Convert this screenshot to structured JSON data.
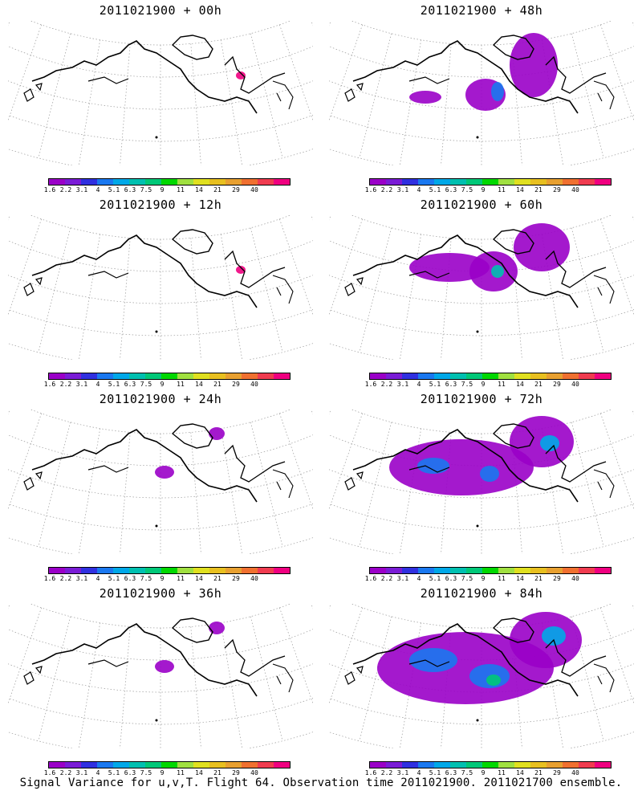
{
  "caption": "Signal Variance for u,v,T. Flight 64. Observation time 2011021900. 2011021700 ensemble.",
  "legend": {
    "labels": [
      "1.6",
      "2.2",
      "3.1",
      "4",
      "5.1",
      "6.3",
      "7.5",
      "9",
      "11",
      "14",
      "21",
      "29",
      "40"
    ],
    "colors": [
      "#9a00c8",
      "#7a1cd6",
      "#3030e0",
      "#1a78f0",
      "#00a8e8",
      "#00c0b0",
      "#00c878",
      "#00d800",
      "#a0e040",
      "#e0e020",
      "#e8c020",
      "#e8a030",
      "#f07030",
      "#f03c50",
      "#f00080"
    ]
  },
  "panels": [
    {
      "title": "2011021900 + 00h",
      "level": 0
    },
    {
      "title": "2011021900 + 48h",
      "level": 2
    },
    {
      "title": "2011021900 + 12h",
      "level": 0
    },
    {
      "title": "2011021900 + 60h",
      "level": 3
    },
    {
      "title": "2011021900 + 24h",
      "level": 1
    },
    {
      "title": "2011021900 + 72h",
      "level": 4
    },
    {
      "title": "2011021900 + 36h",
      "level": 1
    },
    {
      "title": "2011021900 + 84h",
      "level": 5
    }
  ]
}
